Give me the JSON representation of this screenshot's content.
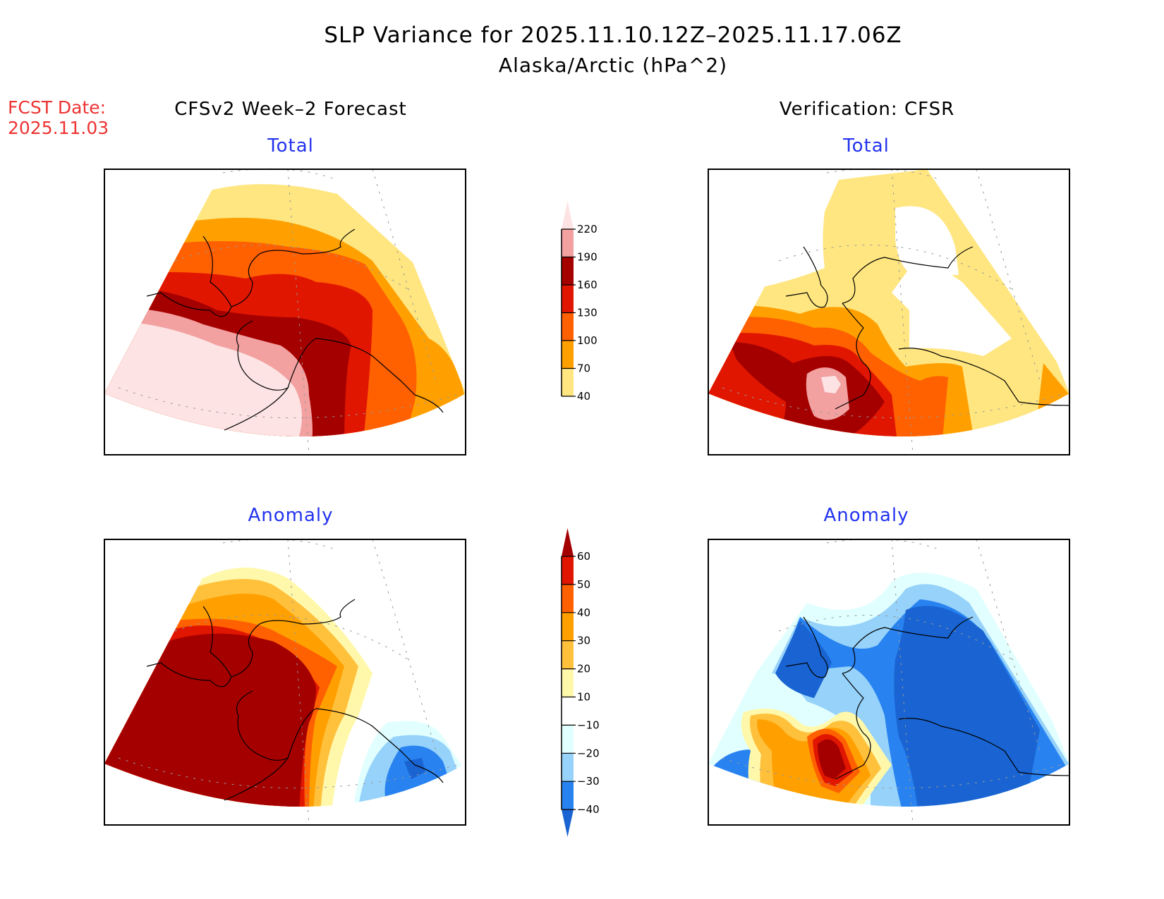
{
  "header": {
    "title": "SLP Variance for 2025.11.10.12Z–2025.11.17.06Z",
    "subtitle": "Alaska/Arctic (hPa^2)",
    "fcst_label": "FCST Date:",
    "fcst_date": "2025.11.03"
  },
  "columns": {
    "left": "CFSv2 Week–2 Forecast",
    "right": "Verification: CFSR"
  },
  "panels": {
    "forecast_total": "Total",
    "verif_total": "Total",
    "forecast_anomaly": "Anomaly",
    "verif_anomaly": "Anomaly"
  },
  "colors": {
    "total": [
      "#ffe680",
      "#ffa000",
      "#ff6000",
      "#e11600",
      "#a50000",
      "#f2a0a0",
      "#fde3e3"
    ],
    "anomaly": [
      "#1964d2",
      "#2882f0",
      "#96d2fa",
      "#e1ffff",
      "#ffffff",
      "#fff8aa",
      "#ffc03c",
      "#ffa000",
      "#ff6000",
      "#e11600",
      "#a50000"
    ],
    "title_blue": "#2233ee",
    "fcst_red": "#ee3333"
  },
  "chart_data": [
    {
      "type": "heatmap",
      "name": "forecast_total",
      "title": "Total",
      "group": "CFSv2 Week-2 Forecast",
      "units": "hPa^2",
      "levels": [
        40,
        70,
        100,
        130,
        160,
        190,
        220
      ],
      "description_regions": "max >220 over Bering Sea / western Alaska; decreasing northeastward to 40-70 over Arctic Ocean"
    },
    {
      "type": "heatmap",
      "name": "verif_total",
      "title": "Total",
      "group": "Verification: CFSR",
      "units": "hPa^2",
      "levels": [
        40,
        70,
        100,
        130,
        160,
        190,
        220
      ],
      "description_regions": "max 190-220+ over Bering Sea south of Alaska; <40 over interior Alaska / Yukon"
    },
    {
      "type": "heatmap",
      "name": "forecast_anomaly",
      "title": "Anomaly",
      "group": "CFSv2 Week-2 Forecast",
      "units": "hPa^2",
      "levels": [
        -40,
        -30,
        -20,
        -10,
        10,
        20,
        30,
        40,
        50,
        60
      ],
      "description_regions": ">60 over most of Alaska and Bering Sea; -40 to -30 over Gulf of Alaska southeast"
    },
    {
      "type": "heatmap",
      "name": "verif_anomaly",
      "title": "Anomaly",
      "group": "Verification: CFSR",
      "units": "hPa^2",
      "levels": [
        -40,
        -30,
        -20,
        -10,
        10,
        20,
        30,
        40,
        50,
        60
      ],
      "description_regions": "<-40 over interior Alaska, Yukon and north; >60 near Alaska Peninsula"
    }
  ],
  "colorbars": {
    "total": {
      "labels": [
        "220",
        "190",
        "160",
        "130",
        "100",
        "70",
        "40"
      ]
    },
    "anomaly": {
      "labels": [
        "60",
        "50",
        "40",
        "30",
        "20",
        "10",
        "−10",
        "−20",
        "−30",
        "−40"
      ]
    }
  }
}
